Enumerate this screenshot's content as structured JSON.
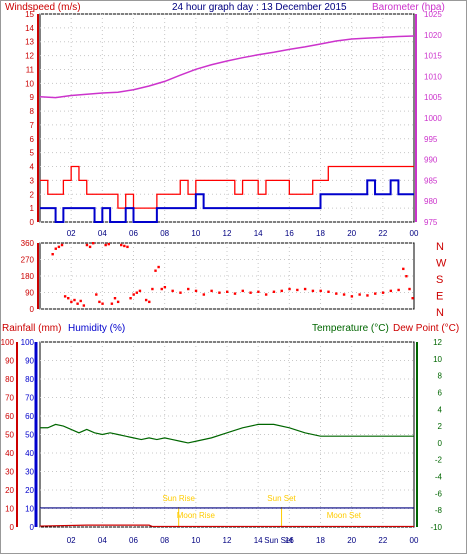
{
  "header": {
    "left_label": "Windspeed (m/s)",
    "title": "24 hour graph day : 13 December 2015",
    "right_label": "Barometer (hpa)"
  },
  "colors": {
    "wind": "#ff0000",
    "gust": "#ff0000",
    "avg_wind": "#0000cc",
    "barometer": "#cc33cc",
    "direction": "#ff0000",
    "rain": "#cc0000",
    "humidity": "#0000ff",
    "temperature": "#006600",
    "dewpoint": "#cc0000",
    "sun": "#ffcc00",
    "grid": "#c8c8c8"
  },
  "chart_data": [
    {
      "type": "line",
      "panel": "wind-barometer",
      "x_ticks": [
        "02",
        "04",
        "06",
        "08",
        "10",
        "12",
        "14",
        "16",
        "18",
        "20",
        "22",
        "00"
      ],
      "xlim_hours": [
        0,
        24
      ],
      "y_left": {
        "label": "Windspeed (m/s)",
        "ylim": [
          0,
          15
        ],
        "ticks": [
          0,
          1,
          2,
          3,
          4,
          5,
          6,
          7,
          8,
          9,
          10,
          11,
          12,
          13,
          14,
          15
        ]
      },
      "y_right": {
        "label": "Barometer (hpa)",
        "ylim": [
          975,
          1025
        ],
        "ticks": [
          975,
          980,
          985,
          990,
          995,
          1000,
          1005,
          1010,
          1015,
          1020,
          1025
        ]
      },
      "series": [
        {
          "axis": "left",
          "hours": [
            0,
            0.5,
            1,
            1.5,
            2,
            2.5,
            3,
            3.5,
            4,
            4.5,
            5,
            5.5,
            6,
            6.5,
            7,
            7.5,
            8,
            8.5,
            9,
            9.5,
            10,
            10.5,
            11,
            11.5,
            12,
            12.5,
            13,
            13.5,
            14,
            14.5,
            15,
            15.5,
            16,
            16.5,
            17,
            17.5,
            18,
            18.5,
            19,
            19.5,
            20,
            20.5,
            21,
            21.5,
            22,
            22.5,
            23,
            23.5,
            24
          ],
          "values": [
            3,
            2,
            2,
            3,
            4,
            3,
            2,
            2,
            2,
            2,
            1,
            2,
            1,
            1,
            1,
            2,
            2,
            2,
            3,
            2,
            3,
            3,
            3,
            3,
            3,
            2,
            3,
            3,
            2,
            3,
            3,
            3,
            2,
            2,
            2,
            3,
            3,
            4,
            4,
            4,
            4,
            4,
            4,
            4,
            4,
            4,
            4,
            4,
            4
          ]
        },
        {
          "axis": "left",
          "hours": [
            0,
            0.5,
            1,
            1.5,
            2,
            2.5,
            3,
            3.5,
            4,
            4.5,
            5,
            5.5,
            6,
            6.5,
            7,
            7.5,
            8,
            8.5,
            9,
            9.5,
            10,
            10.5,
            11,
            11.5,
            12,
            12.5,
            13,
            13.5,
            14,
            14.5,
            15,
            15.5,
            16,
            16.5,
            17,
            17.5,
            18,
            18.5,
            19,
            19.5,
            20,
            20.5,
            21,
            21.5,
            22,
            22.5,
            23,
            23.5,
            24
          ],
          "values": [
            1,
            1,
            0,
            1,
            1,
            1,
            1,
            0,
            1,
            0,
            0,
            1,
            0,
            0,
            0,
            1,
            1,
            1,
            1,
            1,
            2,
            1,
            1,
            1,
            1,
            1,
            1,
            1,
            1,
            1,
            1,
            1,
            1,
            1,
            1,
            1,
            2,
            2,
            2,
            2,
            2,
            2,
            3,
            2,
            2,
            3,
            2,
            2,
            2
          ]
        },
        {
          "axis": "right",
          "hours": [
            0,
            1,
            2,
            3,
            4,
            5,
            6,
            7,
            8,
            9,
            10,
            11,
            12,
            13,
            14,
            15,
            16,
            17,
            18,
            19,
            20,
            21,
            22,
            23,
            24
          ],
          "values": [
            1005.1,
            1004.9,
            1005.4,
            1005.7,
            1006,
            1006.2,
            1006.8,
            1007.7,
            1008.8,
            1010.3,
            1011.7,
            1012.8,
            1013.7,
            1014.5,
            1015.2,
            1015.8,
            1016.5,
            1017.1,
            1017.8,
            1018.5,
            1019,
            1019.2,
            1019.4,
            1019.6,
            1019.7
          ]
        }
      ]
    },
    {
      "type": "scatter",
      "panel": "wind-direction",
      "xlim_hours": [
        0,
        24
      ],
      "y_left": {
        "ylim": [
          0,
          360
        ],
        "ticks": [
          0,
          90,
          180,
          270,
          360
        ]
      },
      "compass_labels": [
        "N",
        "W",
        "S",
        "E",
        "N"
      ],
      "points": [
        [
          0.8,
          300
        ],
        [
          1,
          330
        ],
        [
          1.2,
          340
        ],
        [
          1.4,
          350
        ],
        [
          1.6,
          70
        ],
        [
          1.8,
          60
        ],
        [
          2,
          40
        ],
        [
          2.2,
          50
        ],
        [
          2.4,
          30
        ],
        [
          2.6,
          45
        ],
        [
          2.8,
          20
        ],
        [
          3,
          350
        ],
        [
          3.2,
          340
        ],
        [
          3.4,
          360
        ],
        [
          3.6,
          80
        ],
        [
          3.8,
          40
        ],
        [
          4,
          30
        ],
        [
          4.2,
          350
        ],
        [
          4.4,
          355
        ],
        [
          4.6,
          30
        ],
        [
          4.8,
          60
        ],
        [
          5,
          40
        ],
        [
          5.2,
          350
        ],
        [
          5.4,
          345
        ],
        [
          5.6,
          340
        ],
        [
          5.8,
          60
        ],
        [
          6,
          80
        ],
        [
          6.2,
          90
        ],
        [
          6.4,
          100
        ],
        [
          6.8,
          50
        ],
        [
          7,
          40
        ],
        [
          7.2,
          110
        ],
        [
          7.4,
          210
        ],
        [
          7.6,
          230
        ],
        [
          7.8,
          110
        ],
        [
          8,
          120
        ],
        [
          8.5,
          100
        ],
        [
          9,
          90
        ],
        [
          9.5,
          110
        ],
        [
          10,
          100
        ],
        [
          10.5,
          80
        ],
        [
          11,
          100
        ],
        [
          11.5,
          90
        ],
        [
          12,
          95
        ],
        [
          12.5,
          85
        ],
        [
          13,
          100
        ],
        [
          13.5,
          90
        ],
        [
          14,
          95
        ],
        [
          14.5,
          80
        ],
        [
          15,
          95
        ],
        [
          15.5,
          100
        ],
        [
          16,
          110
        ],
        [
          16.5,
          105
        ],
        [
          17,
          110
        ],
        [
          17.5,
          100
        ],
        [
          18,
          100
        ],
        [
          18.5,
          95
        ],
        [
          19,
          85
        ],
        [
          19.5,
          80
        ],
        [
          20,
          70
        ],
        [
          20.5,
          80
        ],
        [
          21,
          75
        ],
        [
          21.5,
          85
        ],
        [
          22,
          90
        ],
        [
          22.5,
          100
        ],
        [
          23,
          105
        ],
        [
          23.3,
          220
        ],
        [
          23.5,
          180
        ],
        [
          23.7,
          110
        ],
        [
          23.9,
          60
        ]
      ]
    },
    {
      "type": "line",
      "panel": "temperature-humidity-rain",
      "header_left": "Rainfall (mm)",
      "header_humidity": "Humidity (%)",
      "header_temperature": "Temperature (°C)",
      "header_dewpoint": "Dew Point (°C)",
      "xlim_hours": [
        0,
        24
      ],
      "x_ticks": [
        "02",
        "04",
        "06",
        "08",
        "10",
        "12",
        "14",
        "16",
        "18",
        "20",
        "22",
        "00"
      ],
      "y_rain": {
        "ylim": [
          0,
          100
        ],
        "ticks": [
          0,
          10,
          20,
          30,
          40,
          50,
          60,
          70,
          80,
          90,
          100
        ]
      },
      "y_humidity": {
        "ylim": [
          0,
          100
        ],
        "ticks": [
          0,
          10,
          20,
          30,
          40,
          50,
          60,
          70,
          80,
          90,
          100
        ]
      },
      "y_temp": {
        "ylim": [
          -10,
          12
        ],
        "ticks": [
          -10,
          -8,
          -6,
          -4,
          -2,
          0,
          2,
          4,
          6,
          8,
          10,
          12
        ]
      },
      "series": [
        {
          "axis": "temp",
          "hours": [
            0,
            0.5,
            1,
            1.5,
            2,
            2.5,
            3,
            3.5,
            4,
            4.5,
            5,
            5.5,
            6,
            6.5,
            7,
            7.5,
            8,
            8.5,
            9,
            9.5,
            10,
            11,
            12,
            13,
            14,
            15,
            16,
            17,
            18,
            19,
            20,
            21,
            22,
            23,
            24
          ],
          "values": [
            1.8,
            1.8,
            2.2,
            2,
            1.6,
            1.2,
            1.6,
            1.2,
            1,
            1.2,
            1,
            0.8,
            0.6,
            0.4,
            0.6,
            0.4,
            0.6,
            0.4,
            0.2,
            0,
            0.2,
            0.6,
            1.2,
            1.8,
            2.2,
            2.2,
            1.8,
            1.2,
            0.8,
            0.8,
            0.8,
            0.8,
            0.8,
            0.8,
            0.8
          ]
        },
        {
          "axis": "rain",
          "hours": [
            0,
            7,
            7,
            24
          ],
          "values": [
            10.3,
            10.3,
            10.3,
            10.3
          ]
        },
        {
          "axis": "humidity",
          "hours": [
            0,
            3,
            7,
            7.2,
            24
          ],
          "values": [
            0.5,
            1,
            1,
            0.3,
            0.3
          ]
        }
      ],
      "annotations": [
        {
          "text": "Sun Rise",
          "hour": 8.9
        },
        {
          "text": "Sun Set",
          "hour": 15.5
        },
        {
          "text": "Moon Rise",
          "hour": 10
        },
        {
          "text": "Moon Set",
          "hour": 19.5
        },
        {
          "text": "Sun Set",
          "hour": 15.3
        }
      ]
    }
  ]
}
